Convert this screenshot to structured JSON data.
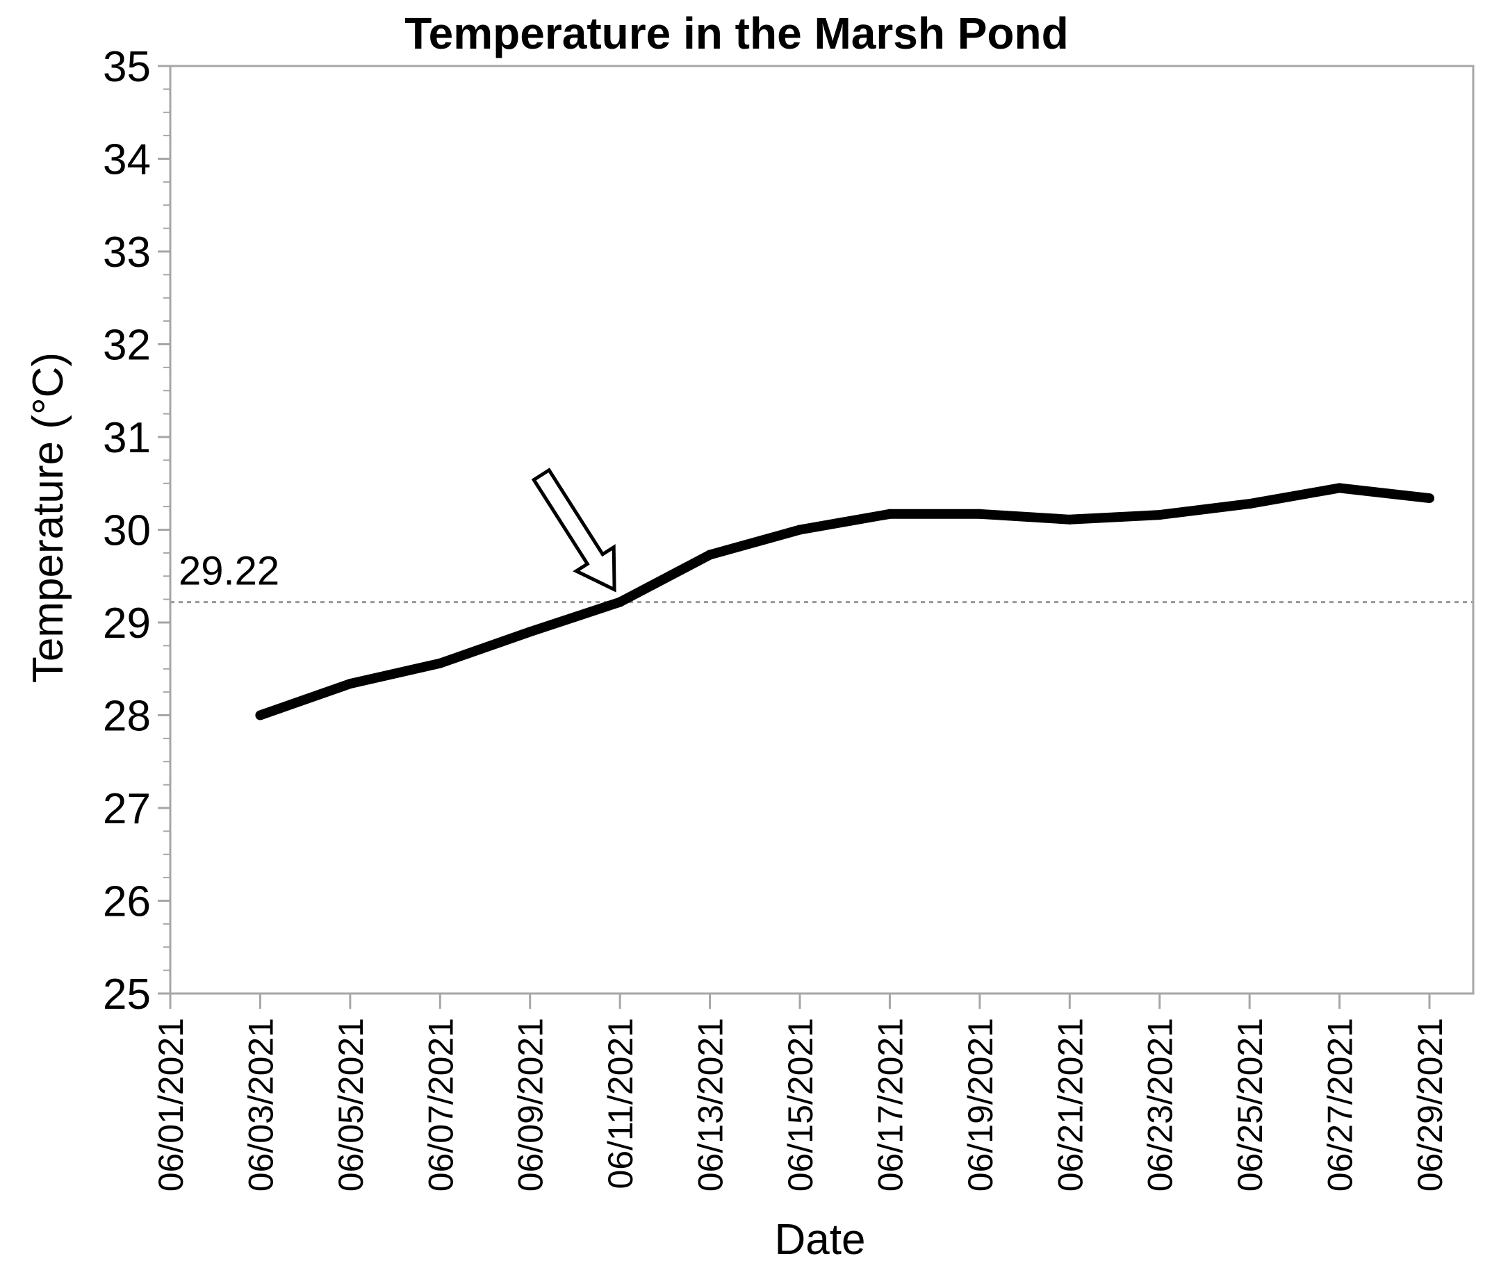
{
  "chart_data": {
    "type": "line",
    "title": "Temperature in the Marsh Pond",
    "xlabel": "Date",
    "ylabel": "Temperature (°C)",
    "ylim": [
      25,
      35
    ],
    "yticks": [
      "25",
      "26",
      "27",
      "28",
      "29",
      "30",
      "31",
      "32",
      "33",
      "34",
      "35"
    ],
    "xlim": [
      "06/01/2021",
      "06/29/2021"
    ],
    "x_ticks": [
      "06/01/2021",
      "06/03/2021",
      "06/05/2021",
      "06/07/2021",
      "06/09/2021",
      "06/11/2021",
      "06/13/2021",
      "06/15/2021",
      "06/17/2021",
      "06/19/2021",
      "06/21/2021",
      "06/23/2021",
      "06/25/2021",
      "06/27/2021",
      "06/29/2021"
    ],
    "series": [
      {
        "x": [
          "06/03/2021",
          "06/05/2021",
          "06/07/2021",
          "06/09/2021",
          "06/11/2021",
          "06/13/2021",
          "06/15/2021",
          "06/17/2021",
          "06/19/2021",
          "06/21/2021",
          "06/23/2021",
          "06/25/2021",
          "06/27/2021",
          "06/29/2021"
        ],
        "values": [
          28.0,
          28.34,
          28.56,
          28.9,
          29.22,
          29.73,
          30.0,
          30.17,
          30.17,
          30.11,
          30.16,
          30.28,
          30.45,
          30.34
        ],
        "color": "#000000"
      }
    ],
    "reference_line": {
      "value": 29.22,
      "label": "29.22",
      "style": "dotted",
      "color": "#999999"
    },
    "annotation_arrow": {
      "target_x": "06/11/2021",
      "target_y": 29.22,
      "style": "outline"
    },
    "grid": false,
    "legend": "none"
  }
}
